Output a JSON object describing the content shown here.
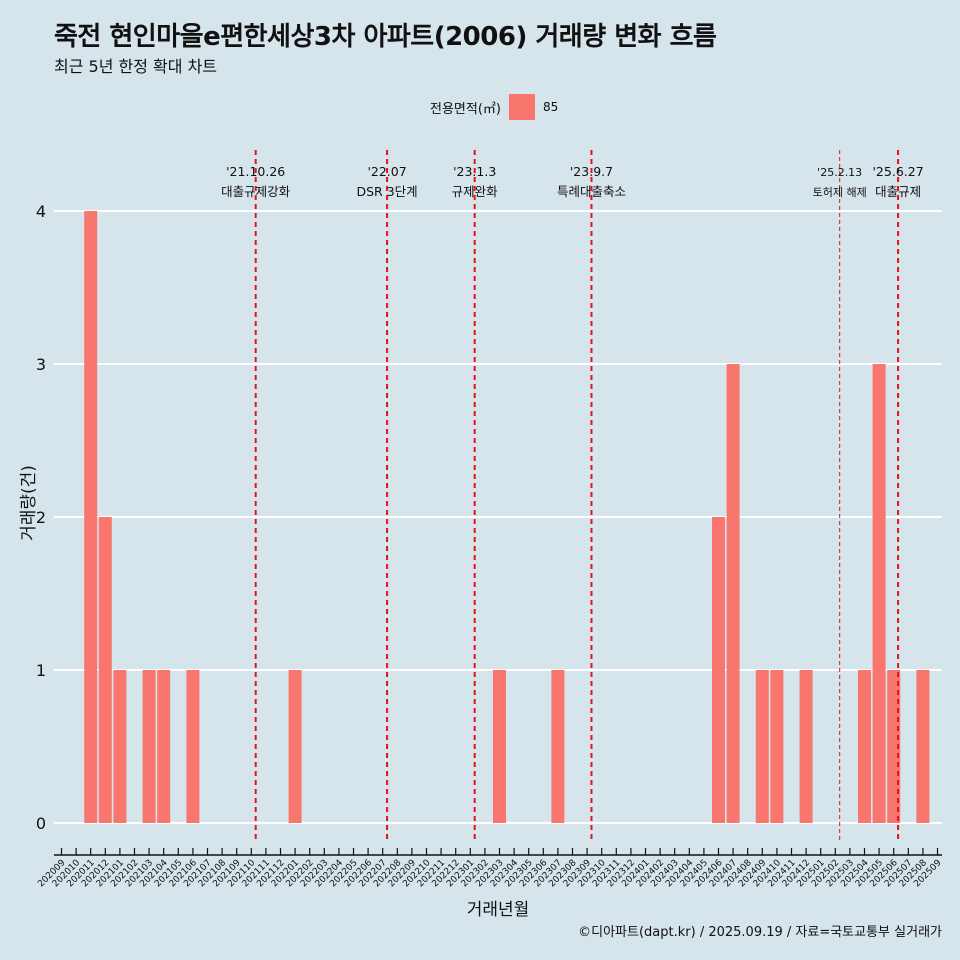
{
  "title": "죽전 현인마을e편한세상3차 아파트(2006) 거래량 변화 흐름",
  "subtitle": "최근 5년 한정 확대 차트",
  "legend": {
    "title": "전용면적(㎡)",
    "entries": [
      {
        "label": "85",
        "color": "#f8766d"
      }
    ]
  },
  "caption": "©디아파트(dapt.kr) / 2025.09.19 / 자료=국토교통부 실거래가",
  "colors": {
    "background": "#d6e4eb",
    "bar": "#f8766d",
    "annotation": "#e8111b",
    "grid": "#ffffff"
  },
  "chart_data": {
    "type": "bar",
    "title": "죽전 현인마을e편한세상3차 아파트(2006) 거래량 변화 흐름",
    "xlabel": "거래년월",
    "ylabel": "거래량(건)",
    "ylim": [
      0,
      4
    ],
    "yticks": [
      0,
      1,
      2,
      3,
      4
    ],
    "categories": [
      "202009",
      "202010",
      "202011",
      "202012",
      "202101",
      "202102",
      "202103",
      "202104",
      "202105",
      "202106",
      "202107",
      "202108",
      "202109",
      "202110",
      "202111",
      "202112",
      "202201",
      "202202",
      "202203",
      "202204",
      "202205",
      "202206",
      "202207",
      "202208",
      "202209",
      "202210",
      "202211",
      "202212",
      "202301",
      "202302",
      "202303",
      "202304",
      "202305",
      "202306",
      "202307",
      "202308",
      "202309",
      "202310",
      "202311",
      "202312",
      "202401",
      "202402",
      "202403",
      "202404",
      "202405",
      "202406",
      "202407",
      "202408",
      "202409",
      "202410",
      "202411",
      "202412",
      "202501",
      "202502",
      "202503",
      "202504",
      "202505",
      "202506",
      "202507",
      "202508",
      "202509"
    ],
    "series": [
      {
        "name": "85",
        "values": [
          0,
          0,
          4,
          2,
          1,
          0,
          1,
          1,
          0,
          1,
          0,
          0,
          0,
          0,
          0,
          0,
          1,
          0,
          0,
          0,
          0,
          0,
          0,
          0,
          0,
          0,
          0,
          0,
          0,
          0,
          1,
          0,
          0,
          0,
          1,
          0,
          0,
          0,
          0,
          0,
          0,
          0,
          0,
          0,
          0,
          2,
          3,
          0,
          1,
          1,
          0,
          1,
          0,
          0,
          0,
          1,
          3,
          1,
          0,
          1,
          0
        ]
      }
    ],
    "annotations": [
      {
        "date": "'21.10.26",
        "label": "대출규제강화",
        "position": 13.3,
        "style": "dashed"
      },
      {
        "date": "'22.07",
        "label": "DSR 3단계",
        "position": 22.3,
        "style": "dashed"
      },
      {
        "date": "'23.1.3",
        "label": "규제완화",
        "position": 28.3,
        "style": "dashed"
      },
      {
        "date": "'23.9.7",
        "label": "특례대출축소",
        "position": 36.3,
        "style": "dashed"
      },
      {
        "date": "'25.2.13",
        "label": "토허제 해제",
        "position": 53.3,
        "style": "thin-dashed"
      },
      {
        "date": "'25.6.27",
        "label": "대출규제",
        "position": 57.3,
        "style": "dashed"
      }
    ]
  }
}
